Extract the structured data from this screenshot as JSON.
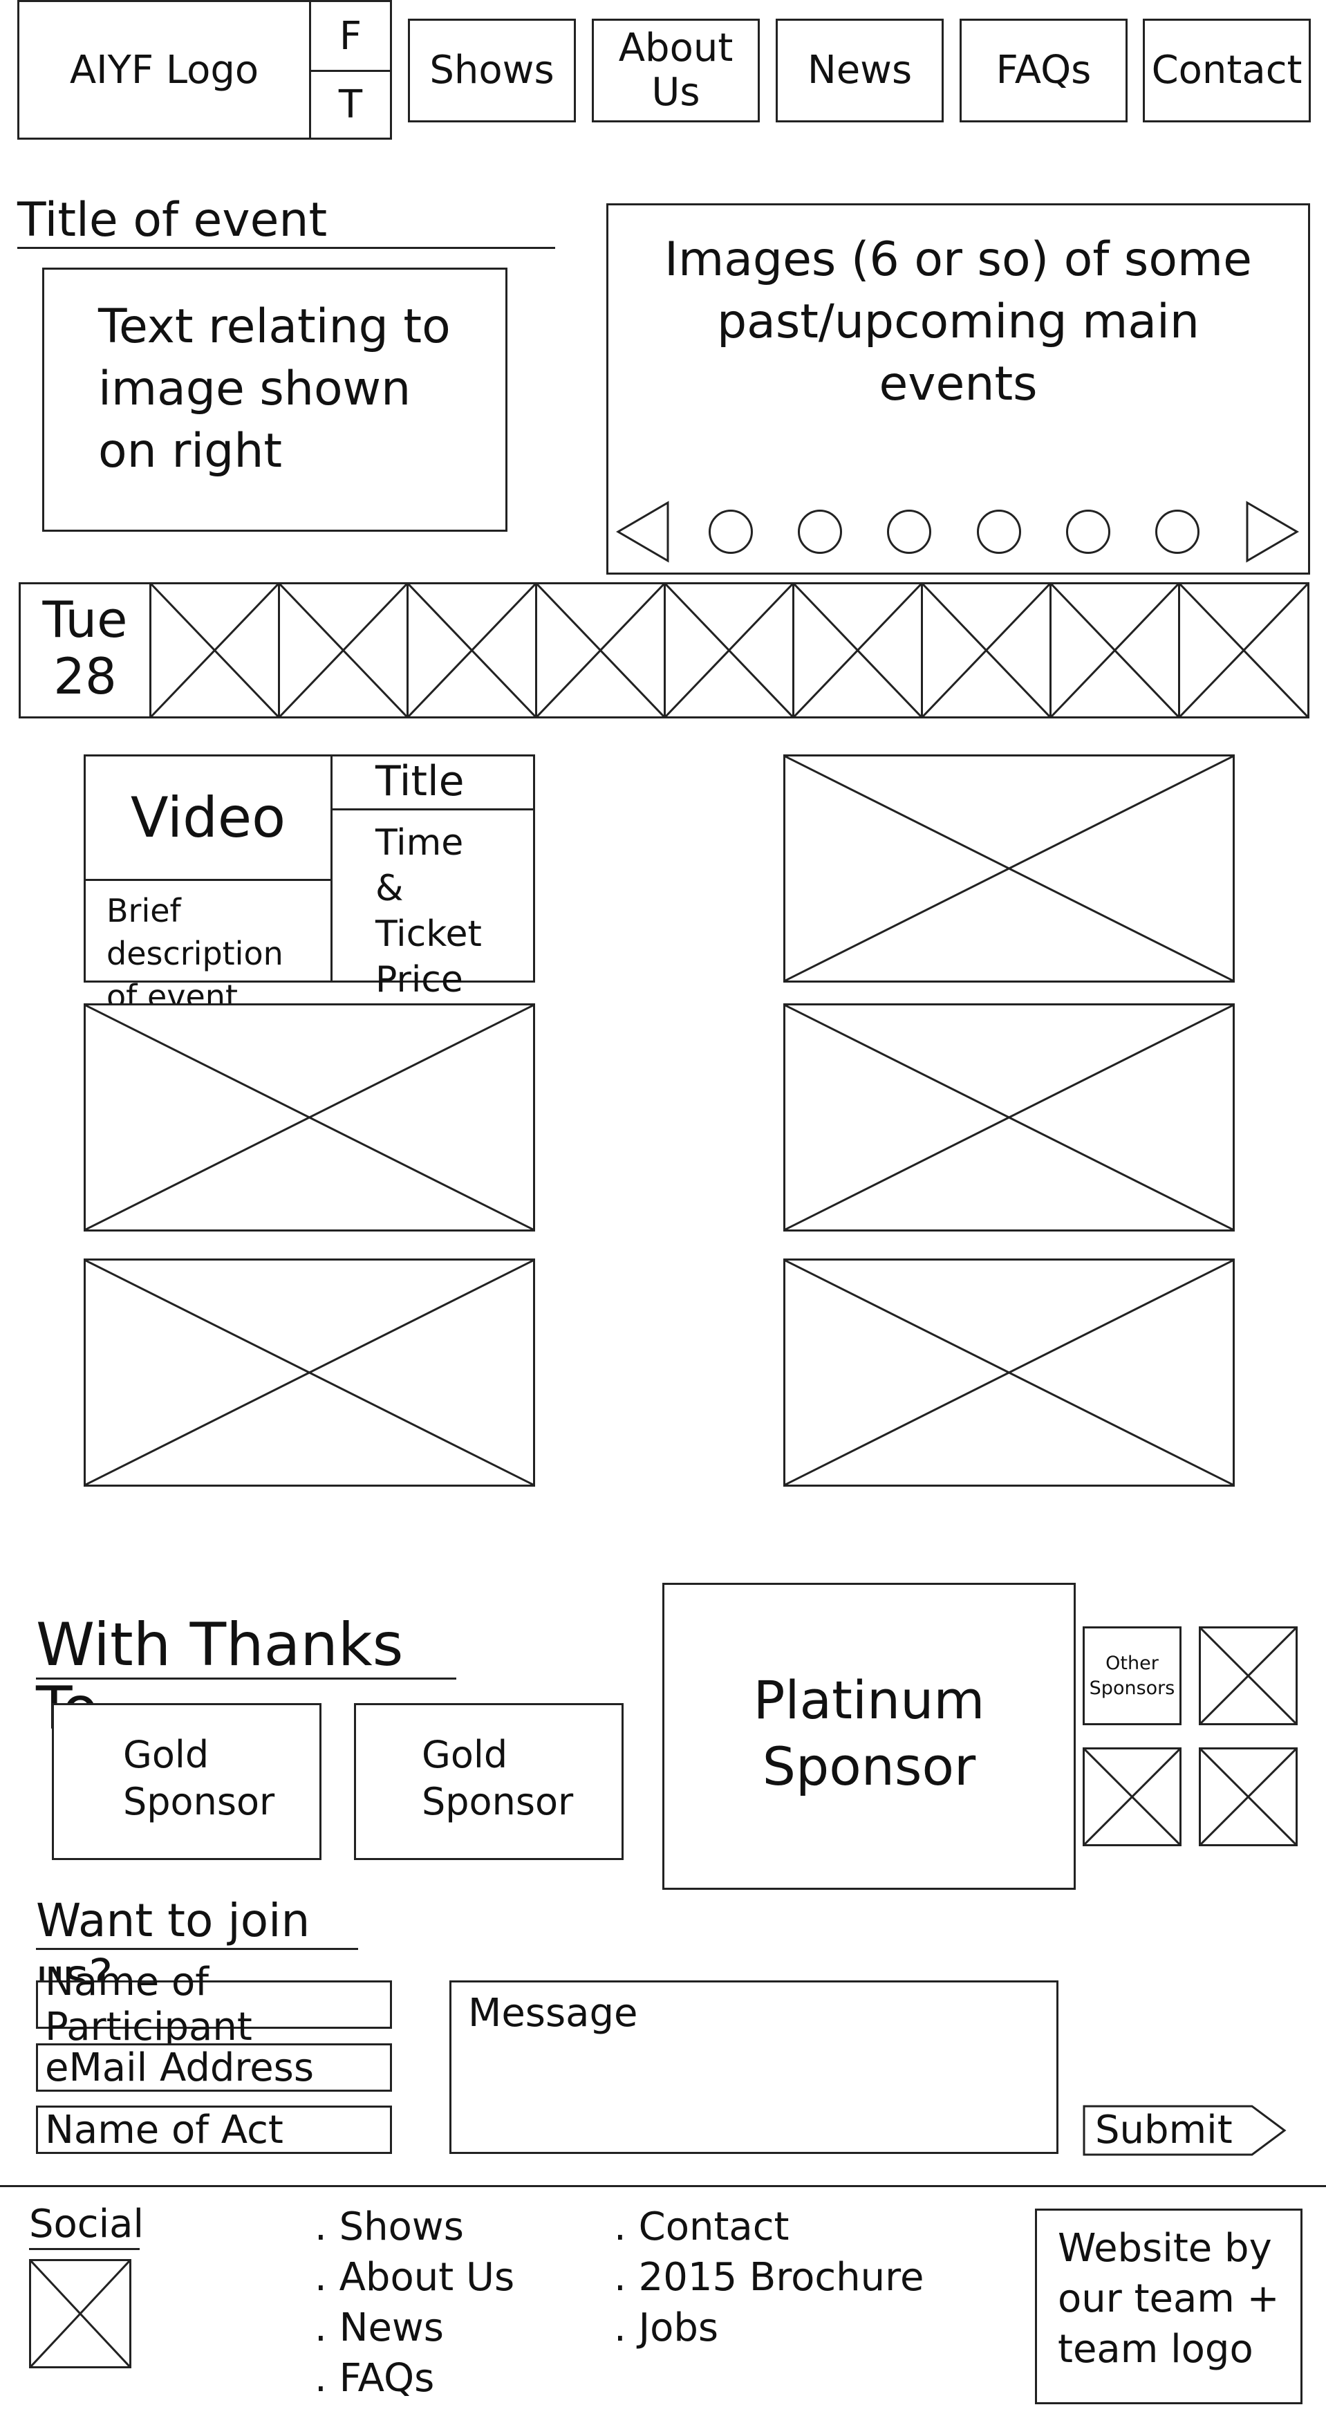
{
  "header": {
    "logo": "AIYF Logo",
    "social_f": "F",
    "social_t": "T",
    "nav": [
      "Shows",
      "About Us",
      "News",
      "FAQs",
      "Contact"
    ]
  },
  "hero": {
    "event_title": "Title of event",
    "description": "Text relating to image shown on right",
    "carousel_text": "Images (6 or so) of some past/upcoming main events",
    "carousel_dots": 6
  },
  "calendar": {
    "day": "Tue",
    "date": "28"
  },
  "event_card": {
    "video": "Video",
    "description": "Brief description of event",
    "title": "Title",
    "details": "Time & Ticket Price"
  },
  "sponsors": {
    "heading": "With Thanks To",
    "gold_1": "Gold Sponsor",
    "gold_2": "Gold Sponsor",
    "platinum": "Platinum Sponsor",
    "other": "Other Sponsors"
  },
  "join": {
    "heading": "Want to join us?",
    "name_placeholder": "Name of Participant",
    "email_placeholder": "eMail Address",
    "act_placeholder": "Name of Act",
    "message_placeholder": "Message",
    "submit": "Submit"
  },
  "footer": {
    "social": "Social",
    "links_col1": [
      ". Shows",
      ". About Us",
      ". News",
      ". FAQs"
    ],
    "links_col2": [
      ". Contact",
      ". 2015 Brochure",
      ". Jobs"
    ],
    "credit": "Website by our team + team logo"
  }
}
